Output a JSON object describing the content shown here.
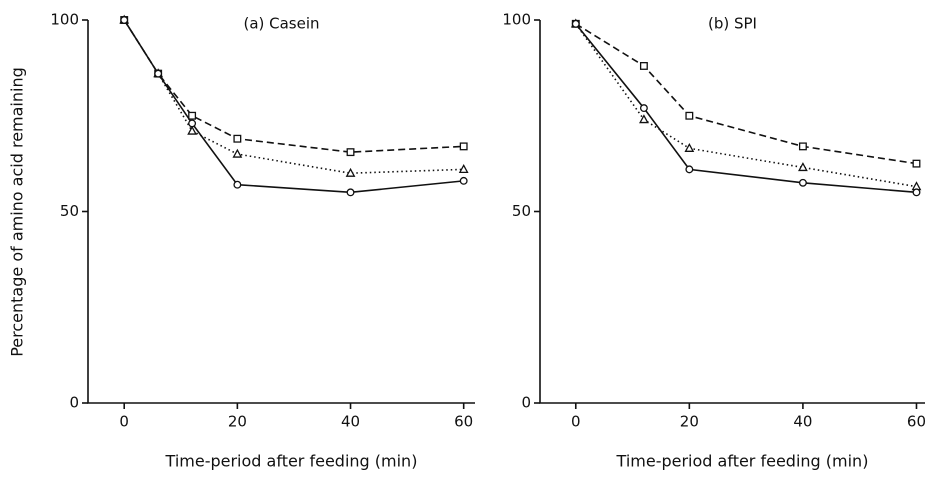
{
  "chart_data": [
    {
      "type": "line",
      "title": "(a) Casein",
      "ylabel": "Percentage of amino acid remaining",
      "xlabel": "Time-period after feeding (min)",
      "x": [
        0,
        6,
        12,
        20,
        40,
        60
      ],
      "series": [
        {
          "color": "#111111",
          "dash": "dashed",
          "marker": "square",
          "values": [
            100,
            86,
            75,
            69,
            65.5,
            67
          ]
        },
        {
          "color": "#111111",
          "dash": "dotted",
          "marker": "triangle",
          "values": [
            100,
            86,
            71,
            65,
            60,
            61
          ]
        },
        {
          "color": "#111111",
          "dash": "solid",
          "marker": "circle",
          "values": [
            100,
            86,
            73,
            57,
            55,
            58
          ]
        }
      ],
      "xlim": [
        -6.4,
        62
      ],
      "xticks": [
        0,
        20,
        40,
        60
      ],
      "ylim": [
        0,
        100
      ],
      "yticks": [
        0,
        50,
        100
      ]
    },
    {
      "type": "line",
      "title": "(b) SPI",
      "xlabel": "Time-period after feeding (min)",
      "x": [
        0,
        12,
        20,
        40,
        60
      ],
      "series": [
        {
          "color": "#111111",
          "dash": "dashed",
          "marker": "square",
          "values": [
            99,
            88,
            75,
            67,
            62.5
          ]
        },
        {
          "color": "#111111",
          "dash": "dotted",
          "marker": "triangle",
          "values": [
            99,
            74,
            66.5,
            61.5,
            56.5
          ]
        },
        {
          "color": "#111111",
          "dash": "solid",
          "marker": "circle",
          "values": [
            99,
            77,
            61,
            57.5,
            55
          ]
        }
      ],
      "xlim": [
        -6.3,
        61.5
      ],
      "xticks": [
        0,
        20,
        40,
        60
      ],
      "ylim": [
        0,
        100
      ],
      "yticks": [
        0,
        50,
        100
      ]
    }
  ]
}
